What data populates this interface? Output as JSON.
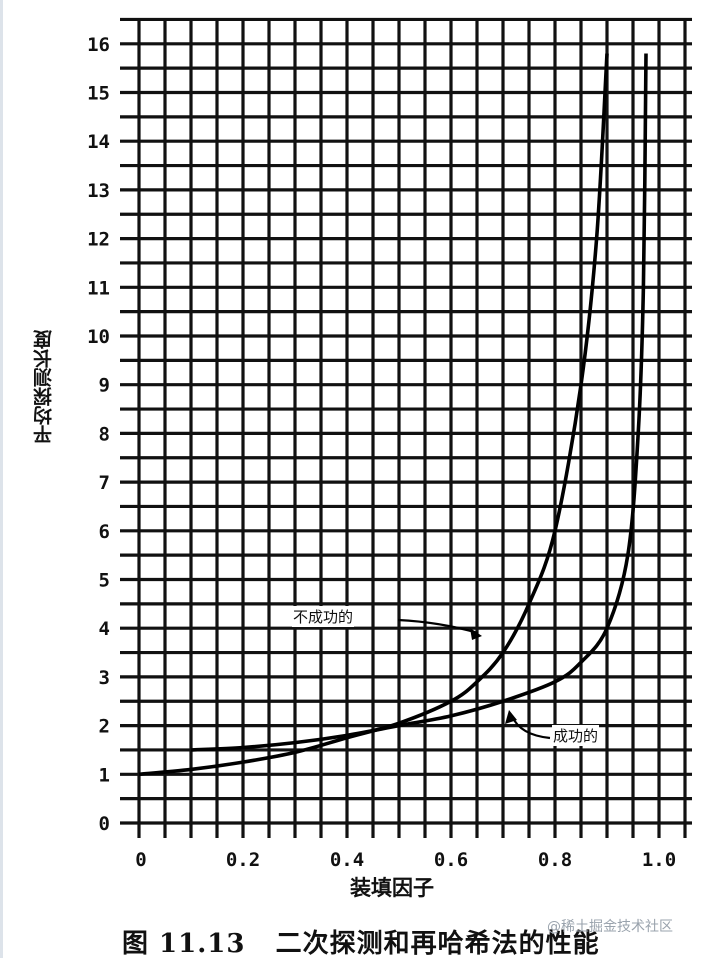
{
  "chart_data": {
    "type": "line",
    "title": "",
    "caption": "图 11.13   二次探测和再哈希法的性能",
    "xlabel": "装填因子",
    "ylabel": "平均探测长度",
    "xlim": [
      0,
      1.05
    ],
    "ylim": [
      0,
      16.5
    ],
    "grid": true,
    "x_ticks": [
      "0",
      "0.2",
      "0.4",
      "0.6",
      "0.8",
      "1.0"
    ],
    "y_ticks": [
      "0",
      "1",
      "2",
      "3",
      "4",
      "5",
      "6",
      "7",
      "8",
      "9",
      "10",
      "11",
      "12",
      "13",
      "14",
      "15",
      "16"
    ],
    "series": [
      {
        "name": "不成功的",
        "x": [
          0,
          0.1,
          0.2,
          0.3,
          0.4,
          0.5,
          0.6,
          0.65,
          0.7,
          0.75,
          0.8,
          0.85,
          0.88,
          0.9
        ],
        "y": [
          1.0,
          1.1,
          1.25,
          1.45,
          1.75,
          2.05,
          2.5,
          2.9,
          3.5,
          4.5,
          6.0,
          9.0,
          12.0,
          15.8
        ]
      },
      {
        "name": "成功的",
        "x": [
          0.1,
          0.2,
          0.3,
          0.4,
          0.5,
          0.6,
          0.7,
          0.8,
          0.85,
          0.9,
          0.94,
          0.96,
          0.97,
          0.975
        ],
        "y": [
          1.5,
          1.55,
          1.65,
          1.8,
          2.0,
          2.2,
          2.5,
          2.9,
          3.3,
          4.0,
          5.5,
          8.0,
          11.0,
          15.8
        ]
      }
    ],
    "annotations": [
      {
        "text": "不成功的",
        "target_series": "不成功的"
      },
      {
        "text": "成功的",
        "target_series": "成功的"
      }
    ]
  },
  "labels": {
    "xlabel": "装填因子",
    "ylabel": "平均探测长度",
    "caption": "图 11.13   二次探测和再哈希法的性能",
    "anno_unsuccessful": "不成功的",
    "anno_successful": "成功的",
    "watermark": "@稀土掘金技术社区"
  }
}
